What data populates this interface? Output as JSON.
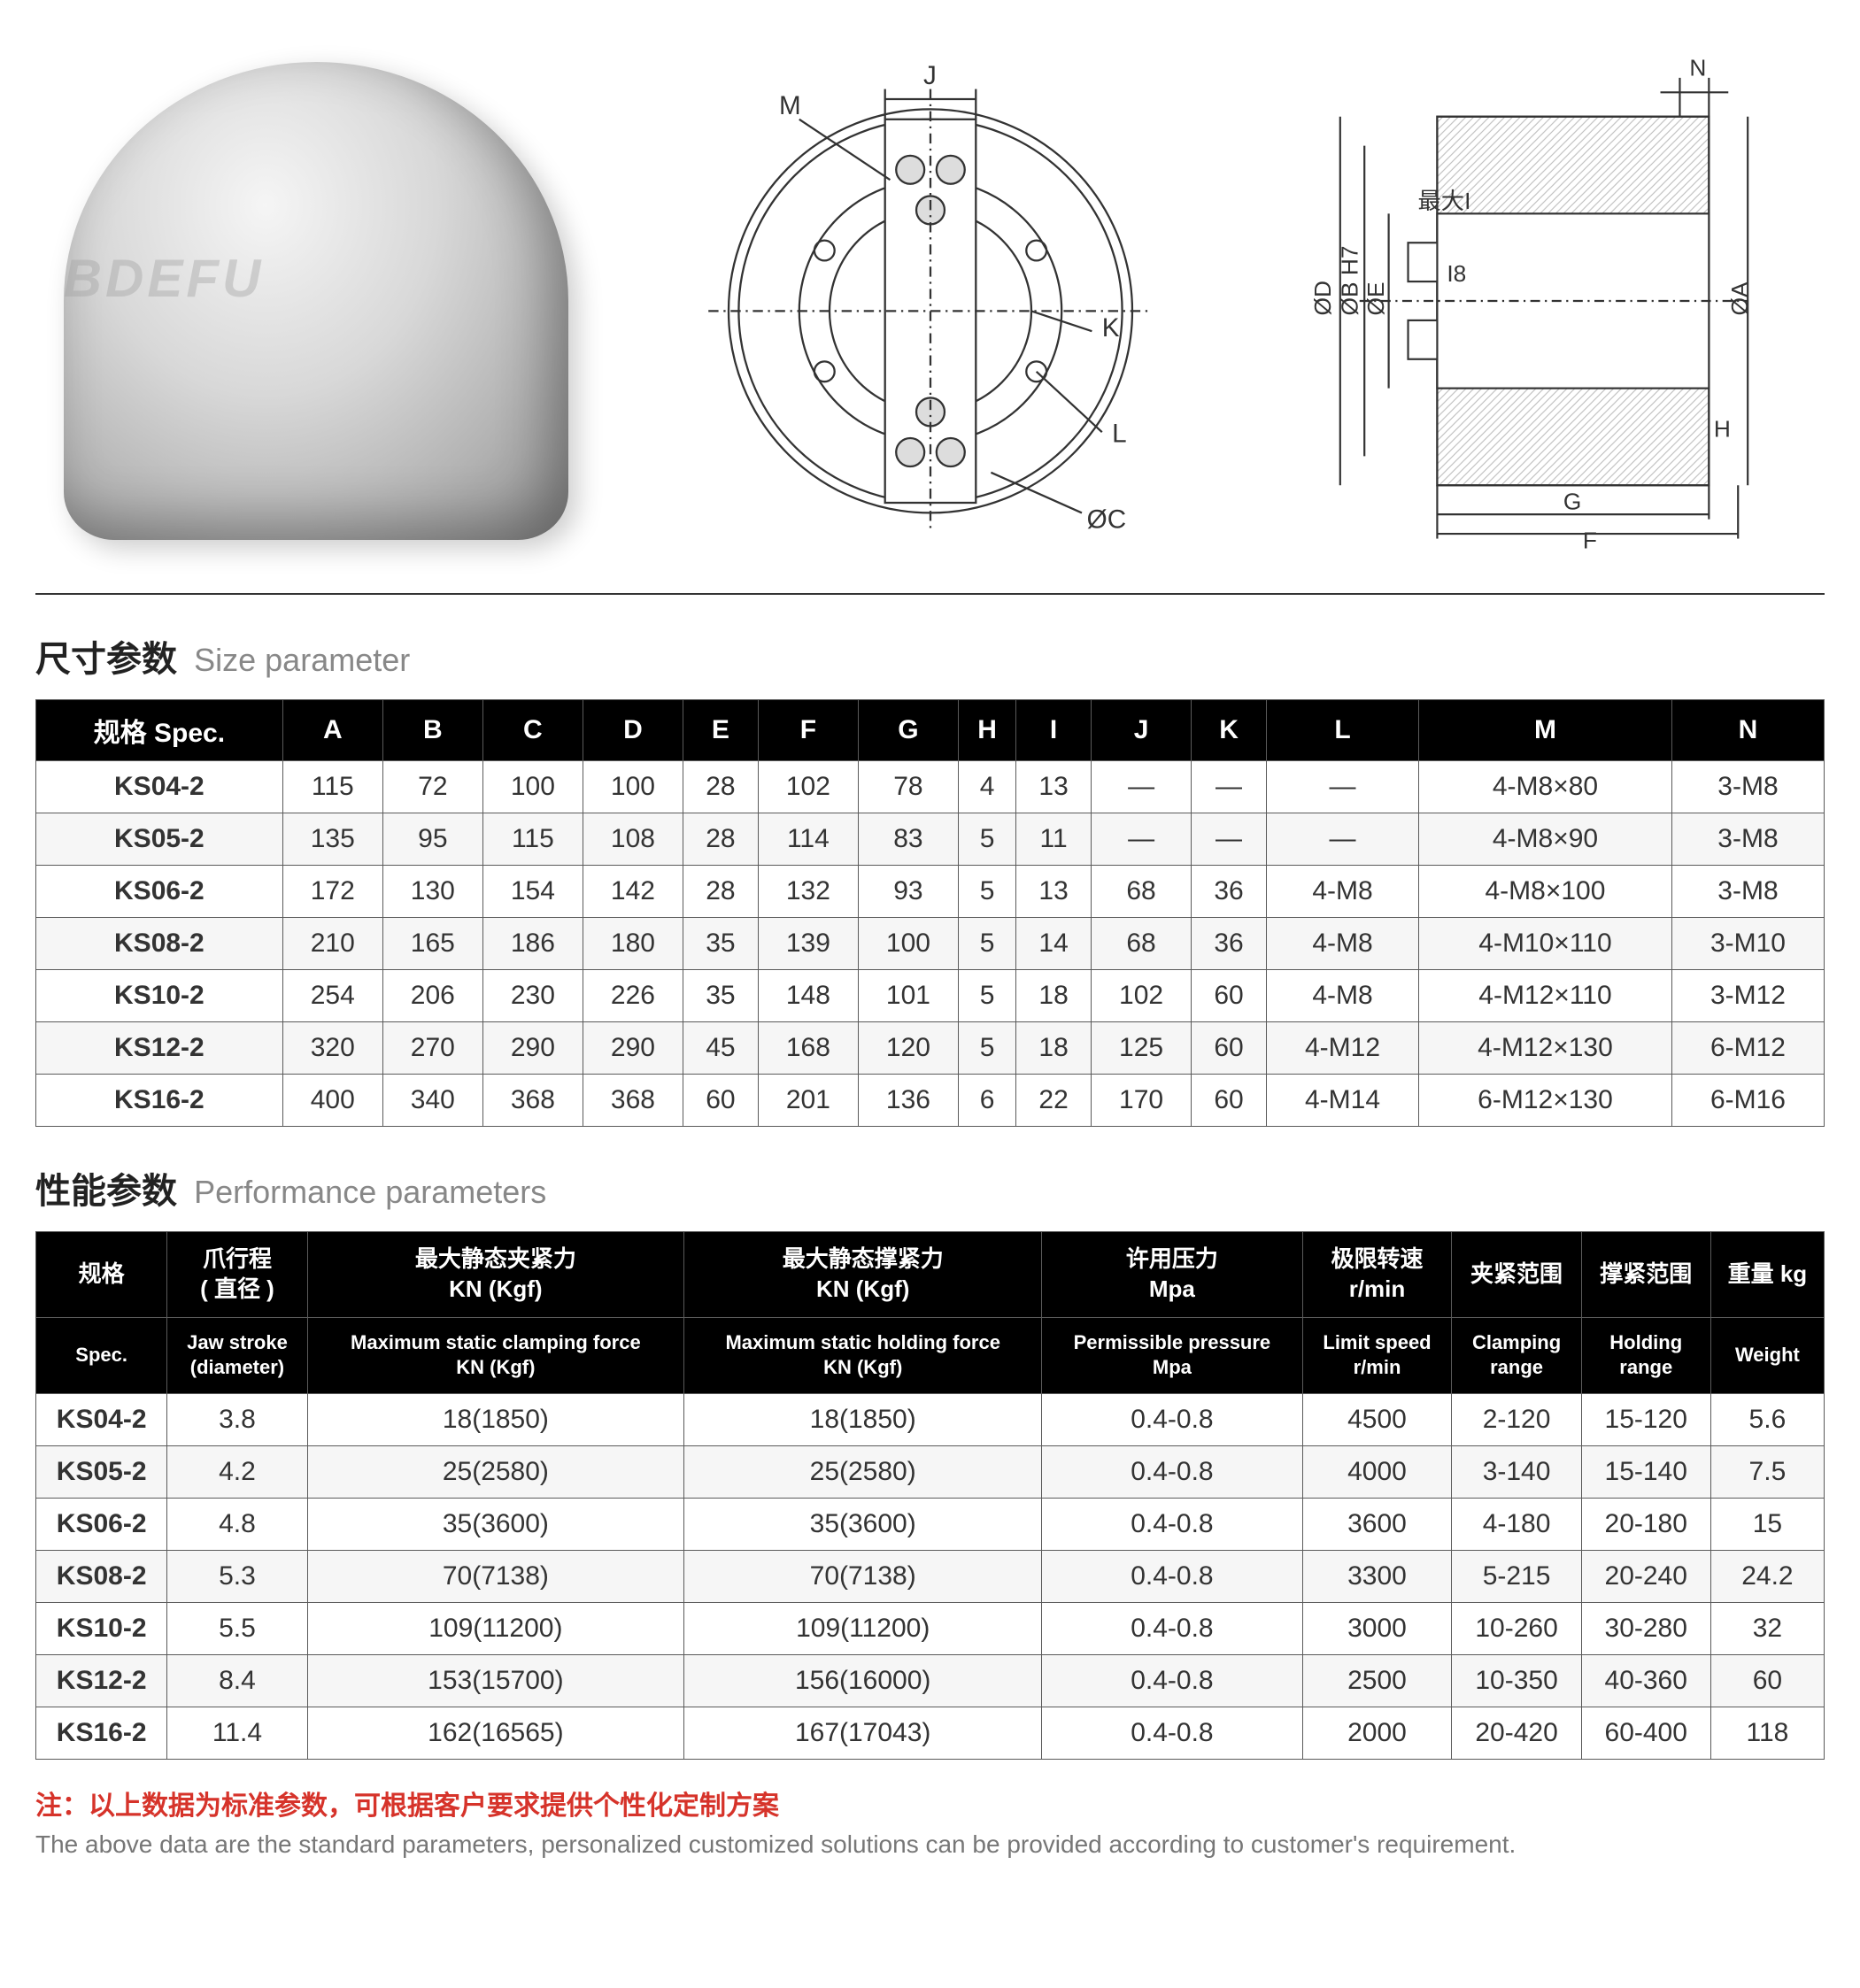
{
  "watermark": "BDEFU",
  "front_labels": [
    "M",
    "J",
    "K",
    "L",
    "ØC"
  ],
  "side_labels": [
    "N",
    "最大I",
    "ØD",
    "ØB H7",
    "ØE",
    "I8",
    "H",
    "G",
    "F",
    "ØA"
  ],
  "section1": {
    "cn": "尺寸参数",
    "en": "Size parameter"
  },
  "size_table": {
    "header_spec": "规格 Spec.",
    "columns": [
      "A",
      "B",
      "C",
      "D",
      "E",
      "F",
      "G",
      "H",
      "I",
      "J",
      "K",
      "L",
      "M",
      "N"
    ],
    "rows": [
      {
        "spec": "KS04-2",
        "v": [
          "115",
          "72",
          "100",
          "100",
          "28",
          "102",
          "78",
          "4",
          "13",
          "—",
          "—",
          "—",
          "4-M8×80",
          "3-M8"
        ]
      },
      {
        "spec": "KS05-2",
        "v": [
          "135",
          "95",
          "115",
          "108",
          "28",
          "114",
          "83",
          "5",
          "11",
          "—",
          "—",
          "—",
          "4-M8×90",
          "3-M8"
        ]
      },
      {
        "spec": "KS06-2",
        "v": [
          "172",
          "130",
          "154",
          "142",
          "28",
          "132",
          "93",
          "5",
          "13",
          "68",
          "36",
          "4-M8",
          "4-M8×100",
          "3-M8"
        ]
      },
      {
        "spec": "KS08-2",
        "v": [
          "210",
          "165",
          "186",
          "180",
          "35",
          "139",
          "100",
          "5",
          "14",
          "68",
          "36",
          "4-M8",
          "4-M10×110",
          "3-M10"
        ]
      },
      {
        "spec": "KS10-2",
        "v": [
          "254",
          "206",
          "230",
          "226",
          "35",
          "148",
          "101",
          "5",
          "18",
          "102",
          "60",
          "4-M8",
          "4-M12×110",
          "3-M12"
        ]
      },
      {
        "spec": "KS12-2",
        "v": [
          "320",
          "270",
          "290",
          "290",
          "45",
          "168",
          "120",
          "5",
          "18",
          "125",
          "60",
          "4-M12",
          "4-M12×130",
          "6-M12"
        ]
      },
      {
        "spec": "KS16-2",
        "v": [
          "400",
          "340",
          "368",
          "368",
          "60",
          "201",
          "136",
          "6",
          "22",
          "170",
          "60",
          "4-M14",
          "6-M12×130",
          "6-M16"
        ]
      }
    ]
  },
  "section2": {
    "cn": "性能参数",
    "en": "Performance parameters"
  },
  "perf_table": {
    "header_cn": [
      "规格",
      "爪行程\n( 直径 )",
      "最大静态夹紧力\nKN (Kgf)",
      "最大静态撑紧力\nKN (Kgf)",
      "许用压力\nMpa",
      "极限转速\nr/min",
      "夹紧范围",
      "撑紧范围",
      "重量 kg"
    ],
    "header_en": [
      "Spec.",
      "Jaw stroke\n(diameter)",
      "Maximum static clamping force\nKN (Kgf)",
      "Maximum static holding force\nKN (Kgf)",
      "Permissible pressure\nMpa",
      "Limit speed\nr/min",
      "Clamping\nrange",
      "Holding\nrange",
      "Weight"
    ],
    "rows": [
      {
        "spec": "KS04-2",
        "v": [
          "3.8",
          "18(1850)",
          "18(1850)",
          "0.4-0.8",
          "4500",
          "2-120",
          "15-120",
          "5.6"
        ]
      },
      {
        "spec": "KS05-2",
        "v": [
          "4.2",
          "25(2580)",
          "25(2580)",
          "0.4-0.8",
          "4000",
          "3-140",
          "15-140",
          "7.5"
        ]
      },
      {
        "spec": "KS06-2",
        "v": [
          "4.8",
          "35(3600)",
          "35(3600)",
          "0.4-0.8",
          "3600",
          "4-180",
          "20-180",
          "15"
        ]
      },
      {
        "spec": "KS08-2",
        "v": [
          "5.3",
          "70(7138)",
          "70(7138)",
          "0.4-0.8",
          "3300",
          "5-215",
          "20-240",
          "24.2"
        ]
      },
      {
        "spec": "KS10-2",
        "v": [
          "5.5",
          "109(11200)",
          "109(11200)",
          "0.4-0.8",
          "3000",
          "10-260",
          "30-280",
          "32"
        ]
      },
      {
        "spec": "KS12-2",
        "v": [
          "8.4",
          "153(15700)",
          "156(16000)",
          "0.4-0.8",
          "2500",
          "10-350",
          "40-360",
          "60"
        ]
      },
      {
        "spec": "KS16-2",
        "v": [
          "11.4",
          "162(16565)",
          "167(17043)",
          "0.4-0.8",
          "2000",
          "20-420",
          "60-400",
          "118"
        ]
      }
    ]
  },
  "footnote": {
    "cn": "注：以上数据为标准参数，可根据客户要求提供个性化定制方案",
    "en": "The above data are the standard parameters, personalized customized solutions can be provided according to customer's requirement."
  },
  "colors": {
    "header_bg": "#000000",
    "header_fg": "#ffffff",
    "border": "#5a5a5a",
    "row_alt": "#f6f6f6",
    "note_red": "#d6332a",
    "text_gray": "#777777"
  }
}
